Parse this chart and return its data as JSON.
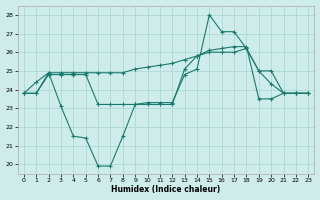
{
  "xlabel": "Humidex (Indice chaleur)",
  "background_color": "#ceecea",
  "grid_color": "#aed8d4",
  "line_color": "#1a7a6e",
  "xlim": [
    -0.5,
    23.5
  ],
  "ylim": [
    19.5,
    28.5
  ],
  "yticks": [
    20,
    21,
    22,
    23,
    24,
    25,
    26,
    27,
    28
  ],
  "xticks": [
    0,
    1,
    2,
    3,
    4,
    5,
    6,
    7,
    8,
    9,
    10,
    11,
    12,
    13,
    14,
    15,
    16,
    17,
    18,
    19,
    20,
    21,
    22,
    23
  ],
  "line1_x": [
    0,
    1,
    2,
    3,
    4,
    5,
    6,
    7,
    8,
    9,
    10,
    11,
    12,
    13,
    14,
    15,
    16,
    17,
    18,
    19,
    20,
    21,
    22,
    23
  ],
  "line1_y": [
    23.8,
    24.4,
    24.9,
    23.1,
    21.5,
    21.4,
    19.9,
    19.9,
    21.5,
    23.2,
    23.3,
    23.3,
    23.3,
    24.8,
    25.1,
    28.0,
    27.1,
    27.1,
    26.2,
    25.0,
    24.3,
    23.8,
    23.8,
    23.8
  ],
  "line2_x": [
    0,
    1,
    2,
    3,
    4,
    5,
    6,
    7,
    8,
    9,
    10,
    11,
    12,
    13,
    14,
    15,
    16,
    17,
    18,
    19,
    20,
    21,
    22,
    23
  ],
  "line2_y": [
    23.8,
    23.8,
    24.8,
    24.8,
    24.8,
    24.8,
    23.2,
    23.2,
    23.2,
    23.2,
    23.2,
    23.2,
    23.2,
    25.1,
    25.8,
    26.0,
    26.0,
    26.0,
    26.2,
    25.0,
    25.0,
    23.8,
    23.8,
    23.8
  ],
  "line3_x": [
    0,
    1,
    2,
    3,
    4,
    5,
    6,
    7,
    8,
    9,
    10,
    11,
    12,
    13,
    14,
    15,
    16,
    17,
    18,
    19,
    20,
    21,
    22,
    23
  ],
  "line3_y": [
    23.8,
    23.8,
    24.9,
    24.9,
    24.9,
    24.9,
    24.9,
    24.9,
    24.9,
    25.1,
    25.2,
    25.3,
    25.4,
    25.6,
    25.8,
    26.1,
    26.2,
    26.3,
    26.3,
    23.5,
    23.5,
    23.8,
    23.8,
    23.8
  ]
}
